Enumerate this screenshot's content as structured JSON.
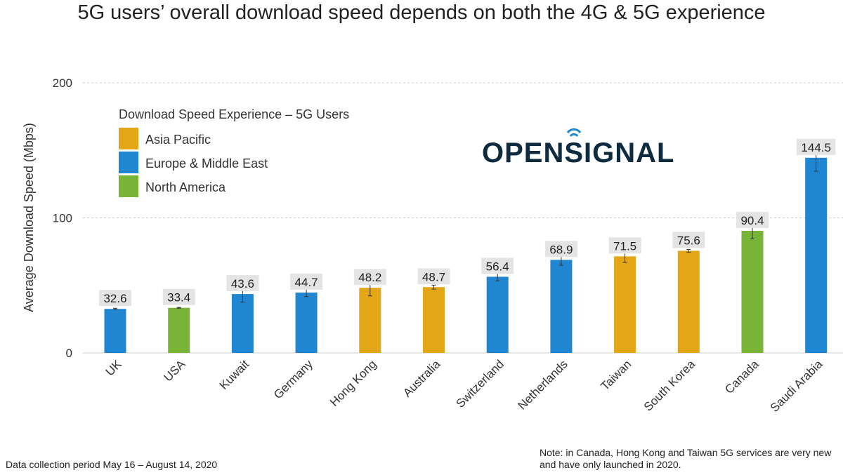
{
  "chart_data": {
    "type": "bar",
    "title": "5G users’ overall download speed depends on both the 4G & 5G experience",
    "xlabel": "",
    "ylabel": "Average Download Speed (Mbps)",
    "ylim": [
      0,
      200
    ],
    "yticks": [
      "0",
      "100",
      "200"
    ],
    "grid": true,
    "categories": [
      "UK",
      "USA",
      "Kuwait",
      "Germany",
      "Hong Kong",
      "Australia",
      "Switzerland",
      "Netherlands",
      "Taiwan",
      "South Korea",
      "Canada",
      "Saudi Arabia"
    ],
    "values": [
      32.6,
      33.4,
      43.6,
      44.7,
      48.2,
      48.7,
      56.4,
      68.9,
      71.5,
      75.6,
      90.4,
      144.5
    ],
    "data_labels": [
      "32.6",
      "33.4",
      "43.6",
      "44.7",
      "48.2",
      "48.7",
      "56.4",
      "68.9",
      "71.5",
      "75.6",
      "90.4",
      "144.5"
    ],
    "error": [
      0.5,
      0.3,
      6,
      3,
      6,
      1.5,
      3,
      4,
      4.5,
      1,
      6,
      10
    ],
    "regions": [
      "Europe & Middle East",
      "North America",
      "Europe & Middle East",
      "Europe & Middle East",
      "Asia Pacific",
      "Asia Pacific",
      "Europe & Middle East",
      "Europe & Middle East",
      "Asia Pacific",
      "Asia Pacific",
      "North America",
      "Europe & Middle East"
    ],
    "legend": {
      "title": "Download Speed Experience – 5G Users",
      "placement": "top-left",
      "entries": [
        {
          "name": "Asia Pacific",
          "color": "#E2A616"
        },
        {
          "name": "Europe & Middle East",
          "color": "#2186D1"
        },
        {
          "name": "North America",
          "color": "#78B536"
        }
      ]
    }
  },
  "logo": {
    "text": "OPENSIGNAL",
    "color": "#0E2B3F",
    "accent": "#2186D1"
  },
  "notes": {
    "left": "Data collection period May 16 – August 14, 2020",
    "right": "Note: in Canada, Hong Kong and Taiwan 5G services are very new and have only launched in 2020."
  }
}
